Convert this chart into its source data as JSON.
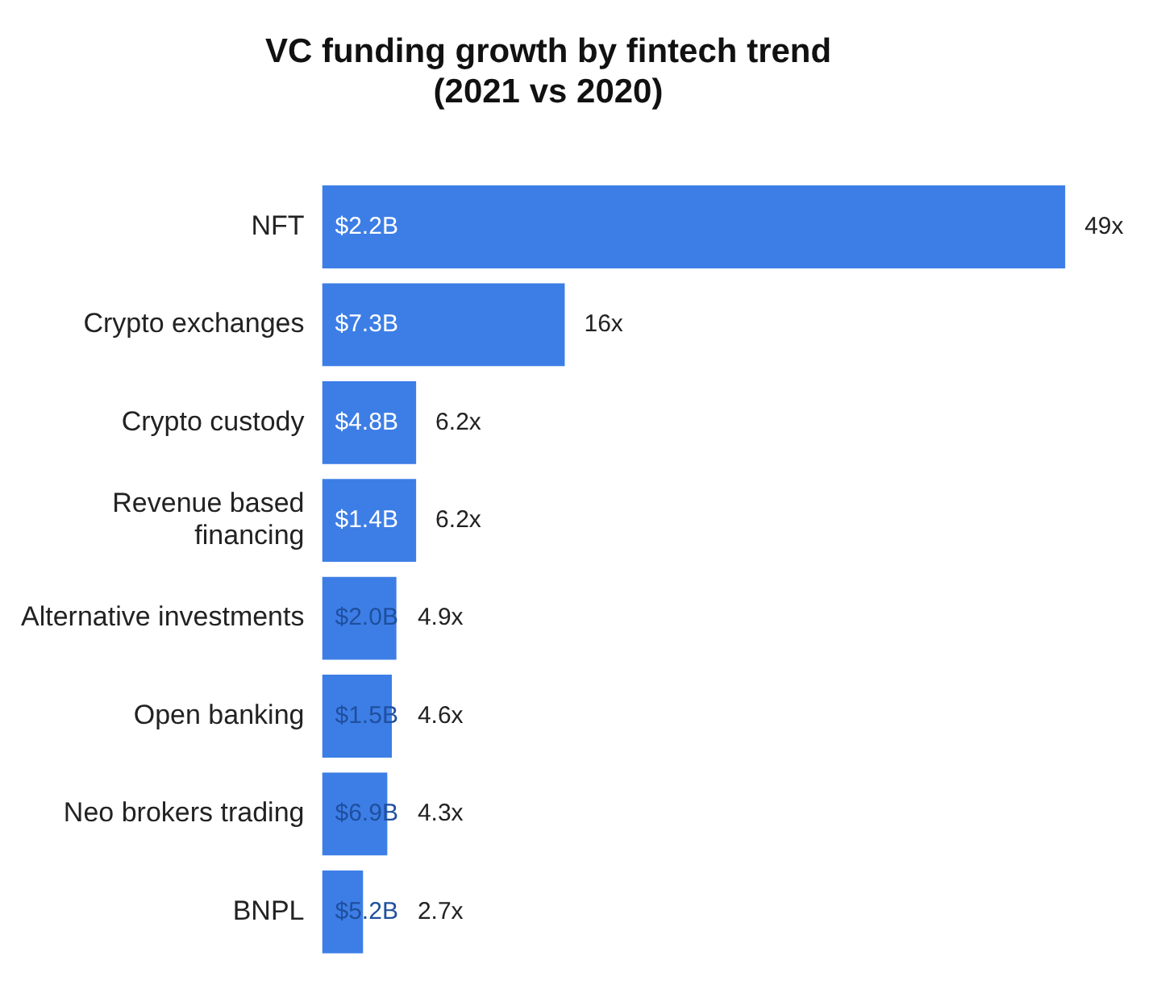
{
  "chart_data": {
    "type": "bar",
    "orientation": "horizontal",
    "title": "VC funding growth by fintech trend\n(2021 vs 2020)",
    "categories": [
      "NFT",
      "Crypto exchanges",
      "Crypto custody",
      "Revenue based\nfinancing",
      "Alternative investments",
      "Open banking",
      "Neo brokers trading",
      "BNPL"
    ],
    "values": [
      49,
      16,
      6.2,
      6.2,
      4.9,
      4.6,
      4.3,
      2.7
    ],
    "value_labels": [
      "49x",
      "16x",
      "6.2x",
      "6.2x",
      "4.9x",
      "4.6x",
      "4.3x",
      "2.7x"
    ],
    "color": "#3d7ee6",
    "annotations": [
      "$2.2B",
      "$7.3B",
      "$4.8B",
      "$1.4B",
      "$2.0B",
      "$1.5B",
      "$6.9B",
      "$5.2B"
    ]
  }
}
